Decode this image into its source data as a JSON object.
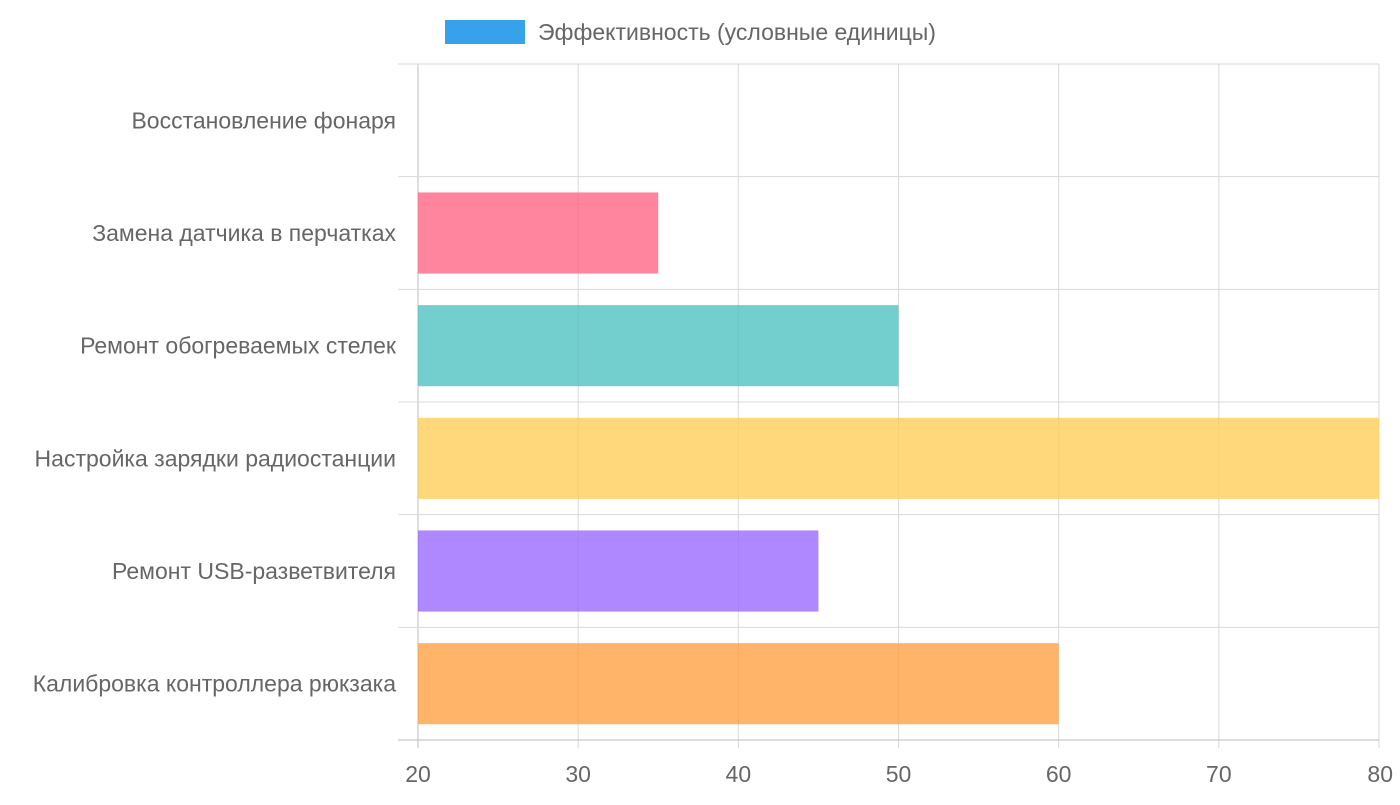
{
  "chart_data": {
    "type": "bar",
    "orientation": "horizontal",
    "title": "",
    "xlabel": "",
    "ylabel": "",
    "xlim": [
      20,
      80
    ],
    "xticks": [
      20,
      30,
      40,
      50,
      60,
      70,
      80
    ],
    "grid": true,
    "legend_position": "top",
    "categories": [
      "Восстановление фонаря",
      "Замена датчика в перчатках",
      "Ремонт обогреваемых стелек",
      "Настройка зарядки радиостанции",
      "Ремонт USB-разветвителя",
      "Калибровка контроллера рюкзака"
    ],
    "series": [
      {
        "name": "Эффективность (условные единицы)",
        "legend_color": "#36A2EB",
        "values": [
          20,
          35,
          50,
          80,
          45,
          60
        ],
        "colors": [
          "#36A2EB",
          "#FF6384",
          "#4BC0C0",
          "#FFCD56",
          "#9966FF",
          "#FF9F40"
        ]
      }
    ]
  }
}
